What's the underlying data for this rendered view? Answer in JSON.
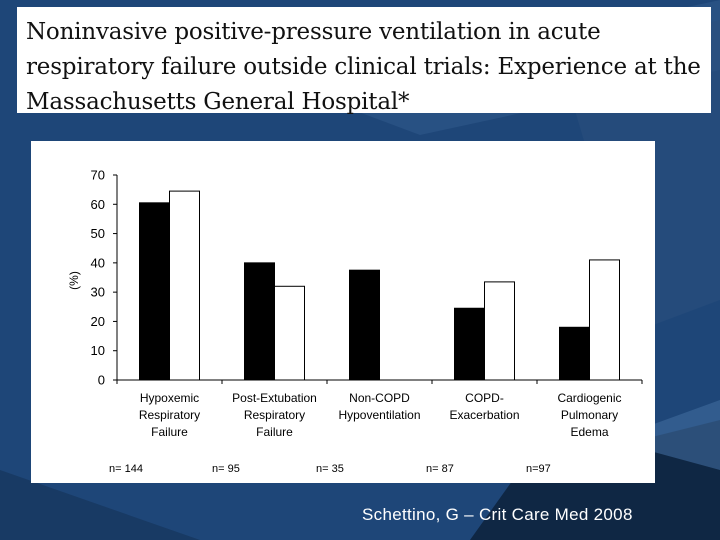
{
  "slide": {
    "title": "Noninvasive positive-pressure ventilation in acute respiratory failure outside clinical trials: Experience at the Massachusetts General Hospital*",
    "citation": "Schettino, G – Crit Care Med 2008",
    "colors": {
      "background": "#1e4678",
      "accent_dark": "#0f2744",
      "accent_light": "#3f6a9c"
    }
  },
  "chart_data": {
    "type": "bar",
    "ylabel": "(%)",
    "ylim": [
      0,
      70
    ],
    "yticks": [
      "0",
      "10",
      "20",
      "30",
      "40",
      "50",
      "60",
      "70"
    ],
    "grid": false,
    "categories": [
      "Hypoxemic Respiratory Failure",
      "Post-Extubation Respiratory Failure",
      "Non-COPD Hypoventilation",
      "COPD-Exacerbation",
      "Cardiogenic Pulmonary Edema"
    ],
    "category_lines": [
      [
        "Hypoxemic",
        "Respiratory",
        "Failure"
      ],
      [
        "Post-Extubation",
        "Respiratory",
        "Failure"
      ],
      [
        "Non-COPD",
        "Hypoventilation"
      ],
      [
        "COPD-",
        "Exacerbation"
      ],
      [
        "Cardiogenic",
        "Pulmonary",
        "Edema"
      ]
    ],
    "n_labels": [
      "n= 144",
      "n= 95",
      "n= 35",
      "n= 87",
      "n=97"
    ],
    "series": [
      {
        "values": [
          60.5,
          40,
          37.5,
          24.5,
          18
        ],
        "color": "#000000"
      },
      {
        "values": [
          64.5,
          32,
          0,
          33.5,
          41
        ],
        "color": "#ffffff"
      }
    ]
  }
}
